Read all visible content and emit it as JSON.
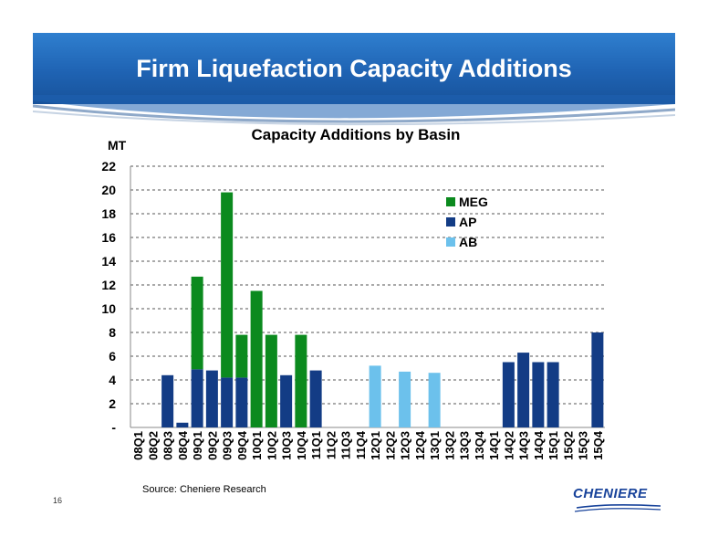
{
  "slide": {
    "title": "Firm Liquefaction Capacity Additions",
    "source": "Source: Cheniere Research",
    "page_number": "16",
    "logo_text": "CHENIERE"
  },
  "colors": {
    "banner": "#1f63b3",
    "MEG": "#0b8a1e",
    "AP": "#133c85",
    "AB": "#6cc1ec"
  },
  "chart_data": {
    "type": "bar",
    "stacked": true,
    "title": "Capacity Additions by Basin",
    "ylabel": "MT",
    "xlabel": "",
    "ylim": [
      0,
      22
    ],
    "yticks": [
      "-",
      "2",
      "4",
      "6",
      "8",
      "10",
      "12",
      "14",
      "16",
      "18",
      "20",
      "22"
    ],
    "grid": true,
    "legend_position": "top-right",
    "categories": [
      "08Q1",
      "08Q2",
      "08Q3",
      "08Q4",
      "09Q1",
      "09Q2",
      "09Q3",
      "09Q4",
      "10Q1",
      "10Q2",
      "10Q3",
      "10Q4",
      "11Q1",
      "11Q2",
      "11Q3",
      "11Q4",
      "12Q1",
      "12Q2",
      "12Q3",
      "12Q4",
      "13Q1",
      "13Q2",
      "13Q3",
      "13Q4",
      "14Q1",
      "14Q2",
      "14Q3",
      "14Q4",
      "15Q1",
      "15Q2",
      "15Q3",
      "15Q4"
    ],
    "series": [
      {
        "name": "AP",
        "color": "#133c85",
        "values": [
          0,
          0,
          4.4,
          0.4,
          4.9,
          4.8,
          4.2,
          4.2,
          0,
          0,
          4.4,
          0,
          4.8,
          0,
          0,
          0,
          0,
          0,
          0,
          0,
          0,
          0,
          0,
          0,
          0,
          5.5,
          6.3,
          5.5,
          5.5,
          0,
          0,
          8.0
        ]
      },
      {
        "name": "MEG",
        "color": "#0b8a1e",
        "values": [
          0,
          0,
          0,
          0,
          7.8,
          0,
          15.6,
          3.6,
          11.5,
          7.8,
          0,
          7.8,
          0,
          0,
          0,
          0,
          0,
          0,
          0,
          0,
          0,
          0,
          0,
          0,
          0,
          0,
          0,
          0,
          0,
          0,
          0,
          0
        ]
      },
      {
        "name": "AB",
        "color": "#6cc1ec",
        "values": [
          0,
          0,
          0,
          0,
          0,
          0,
          0,
          0,
          0,
          0,
          0,
          0,
          0,
          0,
          0,
          0,
          5.2,
          0,
          4.7,
          0,
          4.6,
          0,
          0,
          0,
          0,
          0,
          0,
          0,
          0,
          0,
          0,
          0
        ]
      }
    ],
    "legend_order": [
      "MEG",
      "AP",
      "AB"
    ]
  }
}
